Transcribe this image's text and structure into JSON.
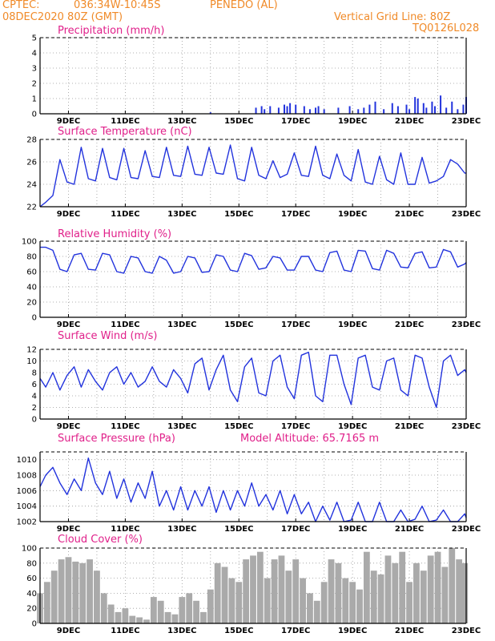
{
  "header": {
    "center": "CPTEC:",
    "coords": "036:34W-10:45S",
    "location": "PENEDO (AL)",
    "date": "08DEC2020 80Z (GMT)",
    "grid_note": "Vertical Grid Line: 80Z",
    "code": "TQ0126L028"
  },
  "colors": {
    "series": "#2233dd",
    "header": "#f08a28",
    "title": "#e0208a",
    "cloud": "#aaaaaa"
  },
  "chart_data": [
    {
      "type": "bar",
      "title": "Precipitation (mm/h)",
      "ylim": [
        0,
        5
      ],
      "yticks": [
        0,
        1,
        2,
        3,
        4,
        5
      ],
      "xticks": [
        "9DEC",
        "11DEC",
        "13DEC",
        "15DEC",
        "17DEC",
        "19DEC",
        "21DEC",
        "23DEC"
      ],
      "x": [
        1.2,
        2.5,
        3.3,
        6.0,
        7.6,
        7.8,
        7.9,
        8.1,
        8.4,
        8.6,
        8.7,
        8.8,
        9.0,
        9.3,
        9.5,
        9.7,
        9.8,
        10.0,
        10.5,
        10.9,
        11.2,
        11.4,
        11.6,
        11.8,
        12.1,
        12.4,
        12.6,
        12.9,
        13.0,
        13.2,
        13.3,
        13.5,
        13.6,
        13.8,
        13.9,
        14.1,
        14.3,
        14.5,
        14.7,
        14.9,
        15.0
      ],
      "values": [
        0.02,
        0.03,
        0.03,
        0.1,
        0.4,
        0.5,
        0.3,
        0.5,
        0.4,
        0.6,
        0.5,
        0.7,
        0.6,
        0.5,
        0.3,
        0.4,
        0.5,
        0.3,
        0.4,
        0.5,
        0.3,
        0.4,
        0.6,
        0.8,
        0.3,
        0.7,
        0.5,
        0.6,
        0.3,
        1.1,
        1.0,
        0.7,
        0.4,
        0.8,
        0.5,
        1.2,
        0.4,
        0.8,
        0.3,
        0.6,
        1.1
      ]
    },
    {
      "type": "line",
      "title": "Surface Temperature (nC)",
      "ylim": [
        22,
        28
      ],
      "yticks": [
        22,
        24,
        26,
        28
      ],
      "xticks": [
        "9DEC",
        "11DEC",
        "13DEC",
        "15DEC",
        "17DEC",
        "19DEC",
        "21DEC",
        "23DEC"
      ],
      "x": [
        0,
        0.2,
        0.45,
        0.7,
        0.95,
        1.2,
        1.45,
        1.7,
        1.95,
        2.2,
        2.45,
        2.7,
        2.95,
        3.2,
        3.45,
        3.7,
        3.95,
        4.2,
        4.45,
        4.7,
        4.95,
        5.2,
        5.45,
        5.7,
        5.95,
        6.2,
        6.45,
        6.7,
        6.95,
        7.2,
        7.45,
        7.7,
        7.95,
        8.2,
        8.45,
        8.7,
        8.95,
        9.2,
        9.45,
        9.7,
        9.95,
        10.2,
        10.45,
        10.7,
        10.95,
        11.2,
        11.45,
        11.7,
        11.95,
        12.2,
        12.45,
        12.7,
        12.95,
        13.2,
        13.45,
        13.7,
        13.95,
        14.2,
        14.45,
        14.7,
        14.95,
        15.0
      ],
      "values": [
        22.0,
        22.4,
        23.0,
        26.2,
        24.2,
        24.0,
        27.3,
        24.5,
        24.3,
        27.2,
        24.6,
        24.4,
        27.2,
        24.6,
        24.5,
        27.0,
        24.7,
        24.6,
        27.3,
        24.8,
        24.7,
        27.4,
        24.9,
        24.8,
        27.3,
        25.0,
        24.9,
        27.5,
        24.5,
        24.3,
        27.3,
        24.8,
        24.5,
        26.1,
        24.6,
        24.9,
        26.8,
        24.8,
        24.7,
        27.4,
        24.8,
        24.5,
        26.7,
        24.8,
        24.3,
        27.1,
        24.2,
        24.0,
        26.5,
        24.4,
        24.0,
        26.8,
        24.0,
        24.0,
        26.4,
        24.1,
        24.3,
        24.7,
        26.2,
        25.8,
        25.0,
        25.0
      ]
    },
    {
      "type": "line",
      "title": "Relative Humidity (%)",
      "ylim": [
        0,
        100
      ],
      "yticks": [
        0,
        20,
        40,
        60,
        80,
        100
      ],
      "xticks": [
        "9DEC",
        "11DEC",
        "13DEC",
        "15DEC",
        "17DEC",
        "19DEC",
        "21DEC",
        "23DEC"
      ],
      "x": [
        0,
        0.2,
        0.45,
        0.7,
        0.95,
        1.2,
        1.45,
        1.7,
        1.95,
        2.2,
        2.45,
        2.7,
        2.95,
        3.2,
        3.45,
        3.7,
        3.95,
        4.2,
        4.45,
        4.7,
        4.95,
        5.2,
        5.45,
        5.7,
        5.95,
        6.2,
        6.45,
        6.7,
        6.95,
        7.2,
        7.45,
        7.7,
        7.95,
        8.2,
        8.45,
        8.7,
        8.95,
        9.2,
        9.45,
        9.7,
        9.95,
        10.2,
        10.45,
        10.7,
        10.95,
        11.2,
        11.45,
        11.7,
        11.95,
        12.2,
        12.45,
        12.7,
        12.95,
        13.2,
        13.45,
        13.7,
        13.95,
        14.2,
        14.45,
        14.7,
        14.95,
        15.0
      ],
      "values": [
        92,
        92,
        88,
        63,
        60,
        82,
        84,
        63,
        62,
        84,
        82,
        60,
        58,
        80,
        78,
        60,
        58,
        80,
        75,
        58,
        60,
        80,
        78,
        59,
        60,
        82,
        80,
        62,
        60,
        84,
        81,
        63,
        65,
        80,
        78,
        62,
        62,
        80,
        80,
        62,
        60,
        85,
        87,
        62,
        60,
        88,
        87,
        64,
        62,
        88,
        84,
        66,
        65,
        84,
        86,
        65,
        66,
        89,
        86,
        66,
        70,
        72
      ]
    },
    {
      "type": "line",
      "title": "Surface Wind (m/s)",
      "ylim": [
        0,
        12
      ],
      "yticks": [
        0,
        2,
        4,
        6,
        8,
        10,
        12
      ],
      "xticks": [
        "9DEC",
        "11DEC",
        "13DEC",
        "15DEC",
        "17DEC",
        "19DEC",
        "21DEC",
        "23DEC"
      ],
      "x": [
        0,
        0.2,
        0.45,
        0.7,
        0.95,
        1.2,
        1.45,
        1.7,
        1.95,
        2.2,
        2.45,
        2.7,
        2.95,
        3.2,
        3.45,
        3.7,
        3.95,
        4.2,
        4.45,
        4.7,
        4.95,
        5.2,
        5.45,
        5.7,
        5.95,
        6.2,
        6.45,
        6.7,
        6.95,
        7.2,
        7.45,
        7.7,
        7.95,
        8.2,
        8.45,
        8.7,
        8.95,
        9.2,
        9.45,
        9.7,
        9.95,
        10.2,
        10.45,
        10.7,
        10.95,
        11.2,
        11.45,
        11.7,
        11.95,
        12.2,
        12.45,
        12.7,
        12.95,
        13.2,
        13.45,
        13.7,
        13.95,
        14.2,
        14.45,
        14.7,
        14.95,
        15.0
      ],
      "values": [
        7.0,
        5.5,
        8.0,
        5.0,
        7.5,
        9.0,
        5.5,
        8.5,
        6.5,
        5.0,
        8.0,
        9.0,
        6.0,
        8.0,
        5.5,
        6.5,
        9.0,
        6.5,
        5.5,
        8.5,
        7.0,
        4.5,
        9.5,
        10.5,
        5.0,
        8.5,
        11.0,
        5.0,
        3.0,
        9.0,
        10.5,
        4.5,
        4.0,
        10.0,
        11.0,
        5.5,
        3.5,
        11.0,
        11.5,
        4.0,
        3.0,
        11.0,
        11.0,
        6.0,
        2.5,
        10.5,
        11.0,
        5.5,
        5.0,
        10.0,
        10.5,
        5.0,
        4.0,
        11.0,
        10.5,
        5.5,
        2.0,
        10.0,
        11.0,
        7.5,
        8.5,
        8.0
      ]
    },
    {
      "type": "line",
      "title": "Surface Pressure (hPa)",
      "annotation": "Model Altitude: 65.7165 m",
      "ylim": [
        1002,
        1011
      ],
      "yticks": [
        1002,
        1004,
        1006,
        1008,
        1010
      ],
      "xticks": [
        "9DEC",
        "11DEC",
        "13DEC",
        "15DEC",
        "17DEC",
        "19DEC",
        "21DEC",
        "23DEC"
      ],
      "x": [
        0,
        0.2,
        0.45,
        0.7,
        0.95,
        1.2,
        1.45,
        1.7,
        1.95,
        2.2,
        2.45,
        2.7,
        2.95,
        3.2,
        3.45,
        3.7,
        3.95,
        4.2,
        4.45,
        4.7,
        4.95,
        5.2,
        5.45,
        5.7,
        5.95,
        6.2,
        6.45,
        6.7,
        6.95,
        7.2,
        7.45,
        7.7,
        7.95,
        8.2,
        8.45,
        8.7,
        8.95,
        9.2,
        9.45,
        9.7,
        9.95,
        10.2,
        10.45,
        10.7,
        10.95,
        11.2,
        11.45,
        11.7,
        11.95,
        12.2,
        12.45,
        12.7,
        12.95,
        13.2,
        13.45,
        13.7,
        13.95,
        14.2,
        14.45,
        14.7,
        14.95,
        15.0
      ],
      "values": [
        1006.5,
        1008.0,
        1009.0,
        1007.0,
        1005.5,
        1007.5,
        1006.0,
        1010.2,
        1007.0,
        1005.5,
        1008.5,
        1005.0,
        1007.5,
        1004.5,
        1007.0,
        1005.0,
        1008.5,
        1004.0,
        1006.0,
        1003.5,
        1006.5,
        1003.5,
        1006.0,
        1004.0,
        1006.5,
        1003.2,
        1006.0,
        1003.5,
        1006.0,
        1004.0,
        1007.0,
        1004.0,
        1005.5,
        1003.5,
        1006.0,
        1003.0,
        1005.5,
        1003.0,
        1004.5,
        1002.0,
        1004.0,
        1002.2,
        1004.5,
        1002.0,
        1002.2,
        1004.5,
        1002.0,
        1002.0,
        1004.5,
        1002.0,
        1002.0,
        1003.5,
        1002.0,
        1002.3,
        1004.0,
        1002.0,
        1002.2,
        1003.5,
        1002.0,
        1002.0,
        1003.0,
        1002.5
      ]
    },
    {
      "type": "bar",
      "title": "Cloud Cover (%)",
      "ylim": [
        0,
        100
      ],
      "yticks": [
        0,
        20,
        40,
        60,
        80,
        100
      ],
      "xticks": [
        "9DEC",
        "11DEC",
        "13DEC",
        "15DEC",
        "17DEC",
        "19DEC",
        "21DEC",
        "23DEC"
      ],
      "x": [
        0,
        0.25,
        0.5,
        0.75,
        1.0,
        1.25,
        1.5,
        1.75,
        2.0,
        2.25,
        2.5,
        2.75,
        3.0,
        3.25,
        3.5,
        3.75,
        4.0,
        4.25,
        4.5,
        4.75,
        5.0,
        5.25,
        5.5,
        5.75,
        6.0,
        6.25,
        6.5,
        6.75,
        7.0,
        7.25,
        7.5,
        7.75,
        8.0,
        8.25,
        8.5,
        8.75,
        9.0,
        9.25,
        9.5,
        9.75,
        10.0,
        10.25,
        10.5,
        10.75,
        11.0,
        11.25,
        11.5,
        11.75,
        12.0,
        12.25,
        12.5,
        12.75,
        13.0,
        13.25,
        13.5,
        13.75,
        14.0,
        14.25,
        14.5,
        14.75,
        14.95
      ],
      "values": [
        40,
        55,
        70,
        85,
        88,
        82,
        80,
        85,
        70,
        40,
        25,
        15,
        20,
        10,
        8,
        5,
        35,
        30,
        15,
        12,
        35,
        40,
        30,
        15,
        45,
        80,
        75,
        60,
        55,
        85,
        90,
        95,
        60,
        85,
        90,
        70,
        85,
        60,
        40,
        30,
        55,
        85,
        80,
        60,
        55,
        45,
        95,
        70,
        65,
        90,
        80,
        95,
        55,
        80,
        70,
        90,
        95,
        75,
        100,
        85,
        80
      ]
    }
  ]
}
